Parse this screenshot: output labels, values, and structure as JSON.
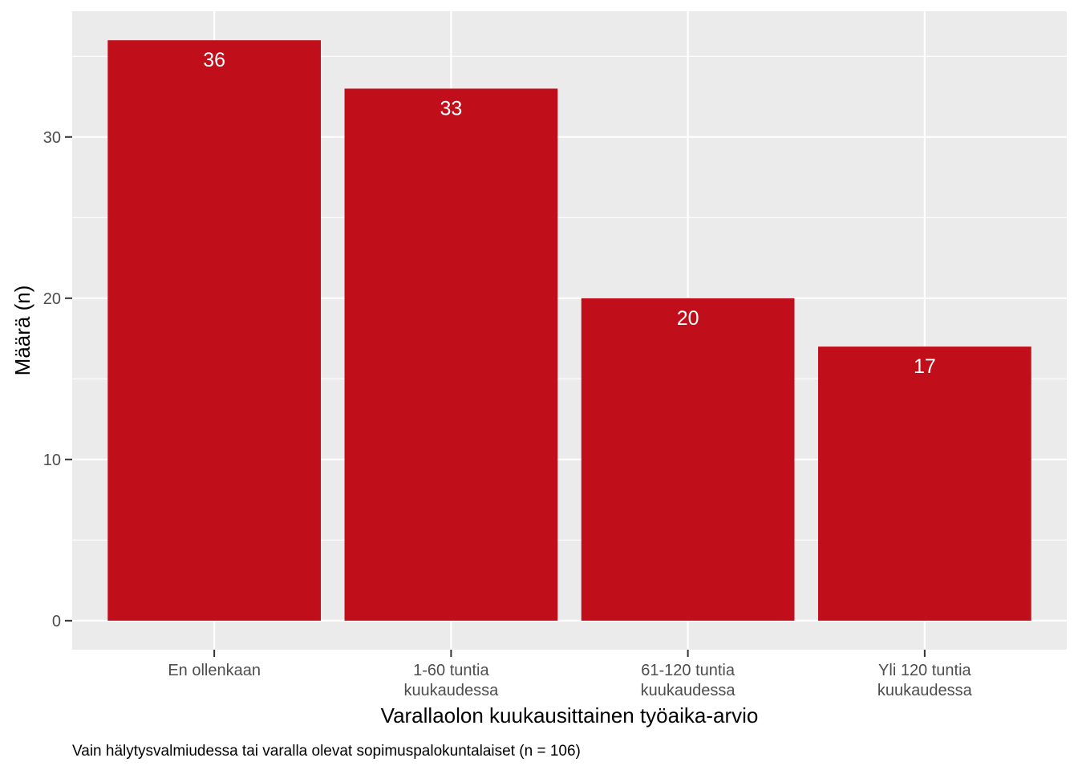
{
  "chart_data": {
    "type": "bar",
    "categories": [
      [
        "En ollenkaan"
      ],
      [
        "1-60 tuntia",
        "kuukaudessa"
      ],
      [
        "61-120 tuntia",
        "kuukaudessa"
      ],
      [
        "Yli 120 tuntia",
        "kuukaudessa"
      ]
    ],
    "values": [
      36,
      33,
      20,
      17
    ],
    "data_labels": [
      "36",
      "33",
      "20",
      "17"
    ],
    "title": "",
    "xlabel": "Varallaolon kuukausittainen työaika-arvio",
    "ylabel": "Määrä (n)",
    "caption": "Vain hälytysvalmiudessa tai varalla olevat sopimuspalokuntalaiset (n = 106)",
    "ylim": [
      -1.8,
      37.8
    ],
    "yticks": [
      0,
      10,
      20,
      30
    ],
    "ytick_labels": [
      "0",
      "10",
      "20",
      "30"
    ],
    "grid": true,
    "legend": "none",
    "colors": {
      "bar": "#c00f1b",
      "panel": "#ebebeb",
      "grid": "#ffffff"
    }
  }
}
